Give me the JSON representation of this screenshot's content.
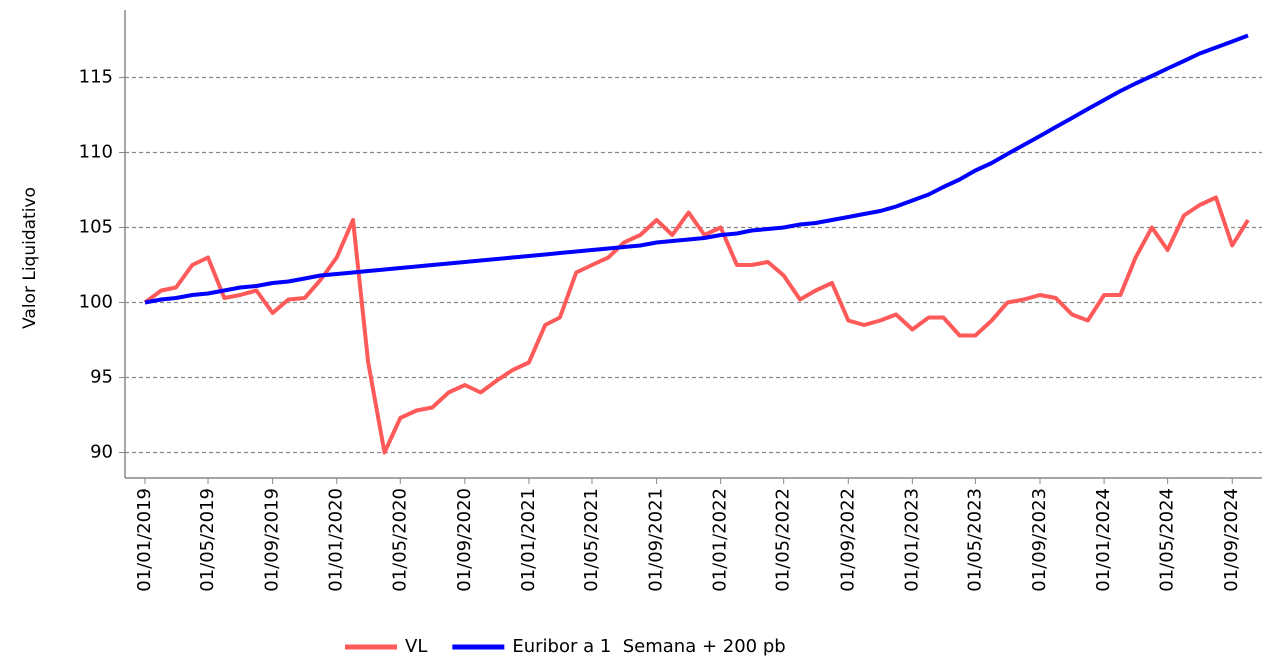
{
  "chart_data": {
    "type": "line",
    "ylabel": "Valor Liquidativo",
    "x": [
      "01/01/2019",
      "01/02/2019",
      "01/03/2019",
      "01/04/2019",
      "01/05/2019",
      "01/06/2019",
      "01/07/2019",
      "01/08/2019",
      "01/09/2019",
      "01/10/2019",
      "01/11/2019",
      "01/12/2019",
      "01/01/2020",
      "01/02/2020",
      "01/03/2020",
      "01/04/2020",
      "01/05/2020",
      "01/06/2020",
      "01/07/2020",
      "01/08/2020",
      "01/09/2020",
      "01/10/2020",
      "01/11/2020",
      "01/12/2020",
      "01/01/2021",
      "01/02/2021",
      "01/03/2021",
      "01/04/2021",
      "01/05/2021",
      "01/06/2021",
      "01/07/2021",
      "01/08/2021",
      "01/09/2021",
      "01/10/2021",
      "01/11/2021",
      "01/12/2021",
      "01/01/2022",
      "01/02/2022",
      "01/03/2022",
      "01/04/2022",
      "01/05/2022",
      "01/06/2022",
      "01/07/2022",
      "01/08/2022",
      "01/09/2022",
      "01/10/2022",
      "01/11/2022",
      "01/12/2022",
      "01/01/2023",
      "01/02/2023",
      "01/03/2023",
      "01/04/2023",
      "01/05/2023",
      "01/06/2023",
      "01/07/2023",
      "01/08/2023",
      "01/09/2023",
      "01/10/2023",
      "01/11/2023",
      "01/12/2023",
      "01/01/2024",
      "01/02/2024",
      "01/03/2024",
      "01/04/2024",
      "01/05/2024",
      "01/06/2024",
      "01/07/2024",
      "01/08/2024",
      "01/09/2024",
      "01/10/2024"
    ],
    "series": [
      {
        "name": "VL",
        "color": "#ff5a5a",
        "values": [
          100,
          100.8,
          101,
          102.5,
          103,
          100.3,
          100.5,
          100.8,
          99.3,
          100.2,
          100.3,
          101.5,
          103,
          105.5,
          96,
          90,
          92.3,
          92.8,
          93,
          94,
          94.5,
          94,
          94.8,
          95.5,
          96,
          98.5,
          99,
          102,
          102.5,
          103,
          104,
          104.5,
          105.5,
          104.5,
          106,
          104.5,
          105,
          102.5,
          102.5,
          102.7,
          101.8,
          100.2,
          100.8,
          101.3,
          98.8,
          98.5,
          98.8,
          99.2,
          98.2,
          99,
          99,
          97.8,
          97.8,
          98.8,
          100,
          100.2,
          100.5,
          100.3,
          99.2,
          98.8,
          100.5,
          100.5,
          103,
          105,
          103.5,
          105.8,
          106.5,
          107,
          103.8,
          105.5
        ]
      },
      {
        "name": "Euribor a 1  Semana + 200 pb",
        "color": "#0000ff",
        "values": [
          100,
          100.2,
          100.3,
          100.5,
          100.6,
          100.8,
          101,
          101.1,
          101.3,
          101.4,
          101.6,
          101.8,
          101.9,
          102,
          102.1,
          102.2,
          102.3,
          102.4,
          102.5,
          102.6,
          102.7,
          102.8,
          102.9,
          103,
          103.1,
          103.2,
          103.3,
          103.4,
          103.5,
          103.6,
          103.7,
          103.8,
          104,
          104.1,
          104.2,
          104.3,
          104.5,
          104.6,
          104.8,
          104.9,
          105,
          105.2,
          105.3,
          105.5,
          105.7,
          105.9,
          106.1,
          106.4,
          106.8,
          107.2,
          107.7,
          108.2,
          108.8,
          109.3,
          109.9,
          110.5,
          111.1,
          111.7,
          112.3,
          112.9,
          113.5,
          114.1,
          114.6,
          115.1,
          115.6,
          116.1,
          116.6,
          117,
          117.4,
          117.8
        ]
      }
    ],
    "xticks": [
      "01/01/2019",
      "01/05/2019",
      "01/09/2019",
      "01/01/2020",
      "01/05/2020",
      "01/09/2020",
      "01/01/2021",
      "01/05/2021",
      "01/09/2021",
      "01/01/2022",
      "01/05/2022",
      "01/09/2022",
      "01/01/2023",
      "01/05/2023",
      "01/09/2023",
      "01/01/2024",
      "01/05/2024",
      "01/09/2024"
    ],
    "ylim": [
      88.3,
      119.5
    ],
    "yticks": [
      90,
      95,
      100,
      105,
      110,
      115
    ],
    "grid": true,
    "legend": "bottom"
  }
}
